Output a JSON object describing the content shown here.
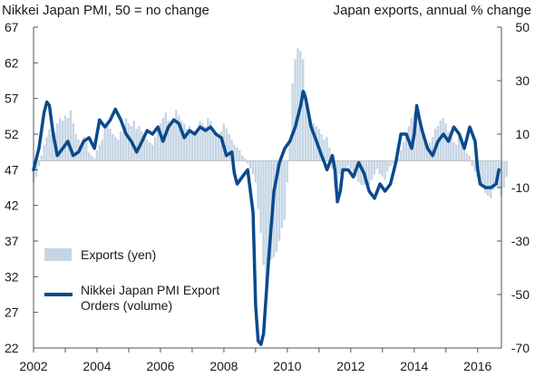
{
  "chart_data": {
    "type": "bar+line",
    "title_left": "Nikkei Japan PMI, 50 = no change",
    "title_right": "Japan exports, annual % change",
    "left_axis": {
      "min": 22,
      "max": 67,
      "ticks": [
        67,
        62,
        57,
        52,
        47,
        42,
        37,
        32,
        27,
        22
      ]
    },
    "right_axis": {
      "min": -70,
      "max": 50,
      "ticks": [
        50,
        30,
        10,
        -10,
        -30,
        -50,
        -70
      ]
    },
    "x_axis": {
      "start": 2002.0,
      "end": 2016.75,
      "ticks": [
        2002,
        2004,
        2006,
        2008,
        2010,
        2012,
        2014,
        2016
      ]
    },
    "legend": {
      "position": "bottom-left",
      "bars_label": "Exports (yen)",
      "line_label_1": "Nikkei Japan PMI Export",
      "line_label_2": "Orders (volume)"
    },
    "colors": {
      "bars": "#c5d5e4",
      "line": "#0a4a8c",
      "axis": "#555555"
    },
    "series": [
      {
        "name": "Exports (yen)",
        "axis": "right",
        "kind": "bars",
        "step": 0.0833,
        "start": 2002.0,
        "values": [
          -8,
          -6,
          -2,
          2,
          6,
          9,
          12,
          10,
          11,
          14,
          16,
          15,
          17,
          16,
          19,
          14,
          10,
          8,
          6,
          9,
          7,
          3,
          2,
          1,
          4,
          6,
          8,
          12,
          14,
          12,
          10,
          9,
          8,
          11,
          13,
          16,
          14,
          13,
          15,
          12,
          13,
          11,
          10,
          8,
          7,
          6,
          9,
          12,
          14,
          16,
          18,
          15,
          14,
          16,
          19,
          17,
          15,
          14,
          12,
          13,
          11,
          10,
          12,
          15,
          14,
          13,
          16,
          15,
          12,
          10,
          9,
          11,
          14,
          12,
          10,
          8,
          6,
          5,
          4,
          2,
          1,
          -1,
          -3,
          -5,
          -8,
          -18,
          -27,
          -39,
          -46,
          -38,
          -37,
          -36,
          -34,
          -30,
          -25,
          -22,
          -8,
          7,
          29,
          38,
          42,
          41,
          38,
          26,
          19,
          12,
          14,
          13,
          12,
          10,
          8,
          9,
          5,
          -3,
          -10,
          -8,
          -5,
          -6,
          -4,
          -2,
          -3,
          -4,
          -6,
          -8,
          -9,
          -9,
          -8,
          -9,
          -7,
          -5,
          -3,
          -5,
          -6,
          -7,
          -4,
          -2,
          -1,
          0,
          1,
          4,
          7,
          10,
          13,
          16,
          18,
          21,
          14,
          11,
          9,
          6,
          7,
          9,
          12,
          13,
          15,
          16,
          14,
          11,
          9,
          7,
          6,
          9,
          8,
          5,
          3,
          2,
          -2,
          -4,
          -6,
          -8,
          -10,
          -12,
          -13,
          -14,
          -11,
          -8,
          -10,
          -13,
          -10,
          -6
        ]
      },
      {
        "name": "Nikkei Japan PMI Export Orders (volume)",
        "axis": "left",
        "kind": "line",
        "points": [
          [
            2002.0,
            47
          ],
          [
            2002.17,
            50
          ],
          [
            2002.33,
            55
          ],
          [
            2002.42,
            56.5
          ],
          [
            2002.5,
            56
          ],
          [
            2002.62,
            52
          ],
          [
            2002.75,
            49
          ],
          [
            2002.92,
            50
          ],
          [
            2003.08,
            51
          ],
          [
            2003.25,
            49
          ],
          [
            2003.42,
            49.5
          ],
          [
            2003.58,
            51
          ],
          [
            2003.75,
            51.5
          ],
          [
            2003.92,
            50
          ],
          [
            2004.08,
            54
          ],
          [
            2004.25,
            53
          ],
          [
            2004.42,
            54
          ],
          [
            2004.58,
            55.5
          ],
          [
            2004.75,
            54
          ],
          [
            2004.92,
            52
          ],
          [
            2005.08,
            51
          ],
          [
            2005.25,
            49.5
          ],
          [
            2005.42,
            51
          ],
          [
            2005.58,
            52.5
          ],
          [
            2005.75,
            52
          ],
          [
            2005.92,
            53
          ],
          [
            2006.08,
            51
          ],
          [
            2006.25,
            53
          ],
          [
            2006.42,
            54
          ],
          [
            2006.58,
            53.5
          ],
          [
            2006.75,
            51.5
          ],
          [
            2006.92,
            52.5
          ],
          [
            2007.08,
            52
          ],
          [
            2007.25,
            53
          ],
          [
            2007.42,
            52.5
          ],
          [
            2007.58,
            53
          ],
          [
            2007.75,
            52
          ],
          [
            2007.92,
            51.5
          ],
          [
            2008.08,
            49
          ],
          [
            2008.25,
            49.5
          ],
          [
            2008.33,
            46.5
          ],
          [
            2008.42,
            45
          ],
          [
            2008.58,
            46
          ],
          [
            2008.75,
            47
          ],
          [
            2008.92,
            41
          ],
          [
            2009.0,
            28
          ],
          [
            2009.08,
            23
          ],
          [
            2009.17,
            22.5
          ],
          [
            2009.25,
            24
          ],
          [
            2009.42,
            35
          ],
          [
            2009.58,
            44
          ],
          [
            2009.75,
            48
          ],
          [
            2009.92,
            50
          ],
          [
            2010.08,
            51
          ],
          [
            2010.25,
            53
          ],
          [
            2010.42,
            56
          ],
          [
            2010.5,
            58
          ],
          [
            2010.58,
            57
          ],
          [
            2010.75,
            53
          ],
          [
            2010.92,
            51
          ],
          [
            2011.08,
            49
          ],
          [
            2011.17,
            48
          ],
          [
            2011.25,
            47
          ],
          [
            2011.42,
            49
          ],
          [
            2011.5,
            47
          ],
          [
            2011.58,
            42.5
          ],
          [
            2011.67,
            44
          ],
          [
            2011.75,
            47
          ],
          [
            2011.92,
            47
          ],
          [
            2012.08,
            46
          ],
          [
            2012.25,
            48
          ],
          [
            2012.42,
            46.5
          ],
          [
            2012.58,
            44
          ],
          [
            2012.75,
            43
          ],
          [
            2012.92,
            45
          ],
          [
            2013.08,
            44
          ],
          [
            2013.25,
            45
          ],
          [
            2013.42,
            48
          ],
          [
            2013.58,
            52
          ],
          [
            2013.75,
            52
          ],
          [
            2013.92,
            50
          ],
          [
            2014.0,
            52
          ],
          [
            2014.08,
            56
          ],
          [
            2014.17,
            54
          ],
          [
            2014.25,
            52.5
          ],
          [
            2014.42,
            50
          ],
          [
            2014.58,
            49
          ],
          [
            2014.75,
            51
          ],
          [
            2014.92,
            52
          ],
          [
            2015.08,
            51
          ],
          [
            2015.25,
            53
          ],
          [
            2015.42,
            52
          ],
          [
            2015.58,
            50
          ],
          [
            2015.75,
            53
          ],
          [
            2015.92,
            51
          ],
          [
            2016.0,
            47
          ],
          [
            2016.08,
            45
          ],
          [
            2016.25,
            44.5
          ],
          [
            2016.42,
            44.5
          ],
          [
            2016.58,
            45
          ],
          [
            2016.67,
            47
          ]
        ]
      }
    ]
  }
}
